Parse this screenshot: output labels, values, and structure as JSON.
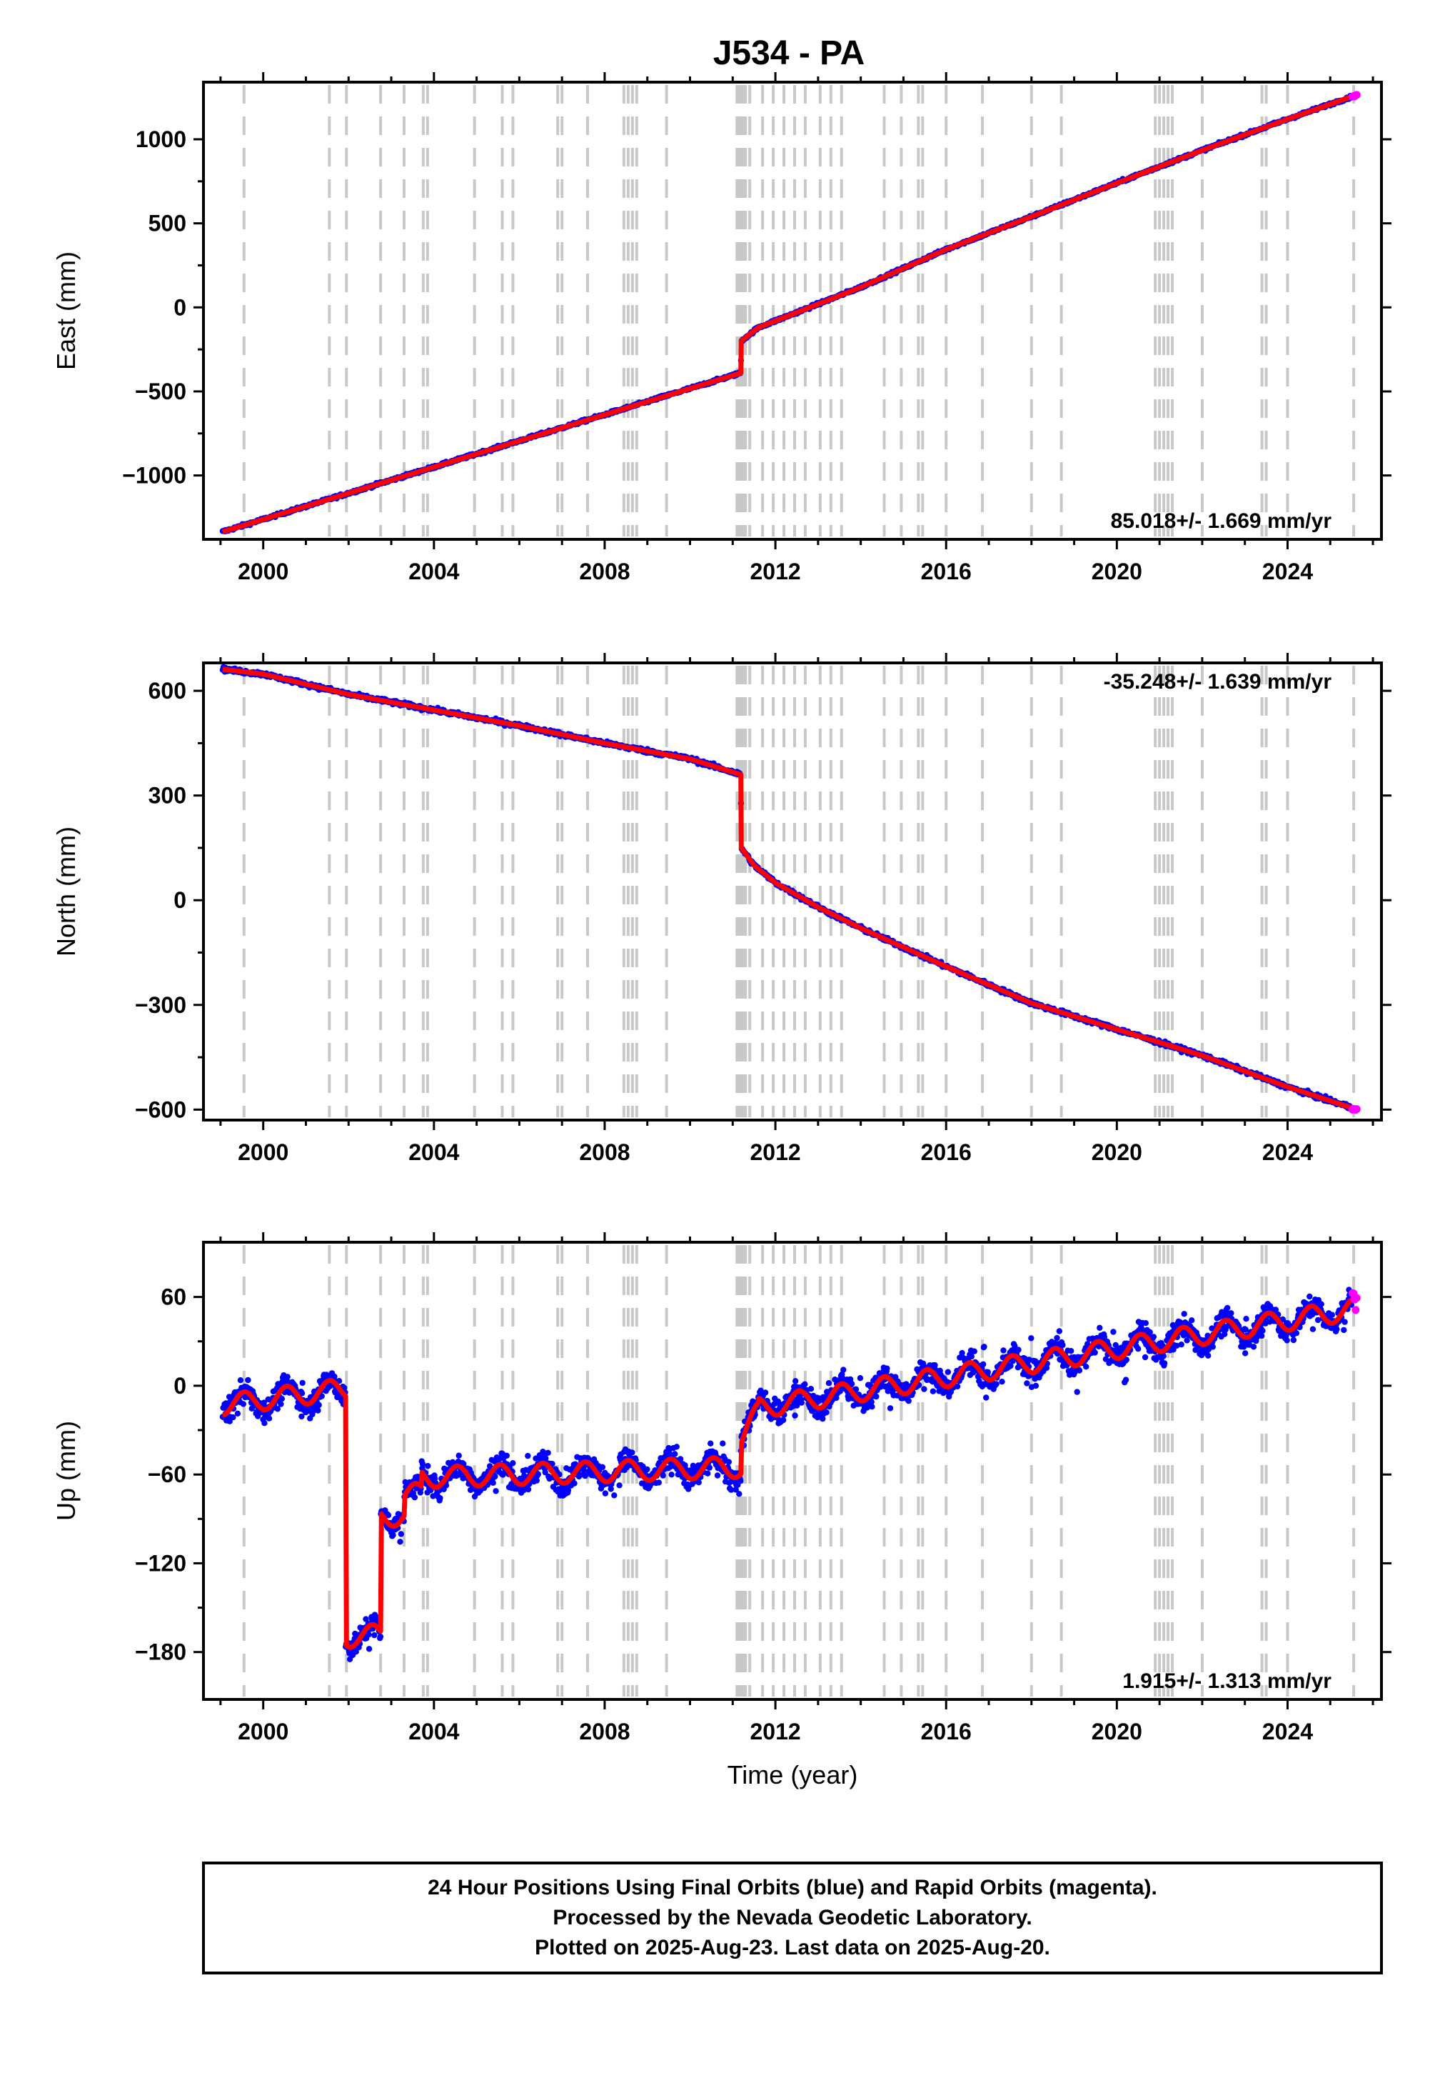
{
  "title": "J534 - PA",
  "footer": {
    "lines": [
      "24 Hour Positions Using Final Orbits (blue) and Rapid Orbits (magenta).",
      "Processed by the Nevada Geodetic Laboratory.",
      "Plotted on 2025-Aug-23. Last data on 2025-Aug-20."
    ]
  },
  "colors": {
    "final_orbits": "#0000ff",
    "rapid_orbits": "#ff00ff",
    "model": "#ff0000",
    "event_lines": "#c8c8c8",
    "frame": "#000000"
  },
  "chart_data": [
    {
      "type": "scatter",
      "panel": "east",
      "title": "J534 - PA",
      "ylabel": "East (mm)",
      "xlabel": "",
      "xlim": [
        1998.6,
        2026.2
      ],
      "ylim": [
        -1380,
        1340
      ],
      "x_ticks": [
        2000,
        2004,
        2008,
        2012,
        2016,
        2020,
        2024
      ],
      "y_ticks": [
        1000,
        500,
        0,
        -500,
        -1000
      ],
      "y_tick_labels": [
        "1000",
        "500",
        "0",
        "−500",
        "−1000"
      ],
      "rate_label": "85.018+/- 1.669 mm/yr",
      "rate_position": "bottom-right",
      "grid": false,
      "model_breakpoints": [
        [
          1999.05,
          -1335
        ],
        [
          2011.19,
          -390
        ],
        [
          2011.2,
          -200
        ],
        [
          2011.6,
          -120
        ],
        [
          2012.5,
          -30
        ],
        [
          2014.0,
          120
        ],
        [
          2016.0,
          345
        ],
        [
          2018.0,
          540
        ],
        [
          2020.0,
          740
        ],
        [
          2022.0,
          935
        ],
        [
          2024.0,
          1120
        ],
        [
          2025.63,
          1265
        ]
      ],
      "series": [
        {
          "name": "Final Orbits",
          "color": "#0000ff",
          "x_range": [
            1999.05,
            2025.5
          ],
          "noise_mm": 8
        },
        {
          "name": "Rapid Orbits",
          "color": "#ff00ff",
          "x_range": [
            2025.52,
            2025.63
          ]
        }
      ]
    },
    {
      "type": "scatter",
      "panel": "north",
      "ylabel": "North (mm)",
      "xlabel": "",
      "xlim": [
        1998.6,
        2026.2
      ],
      "ylim": [
        -630,
        680
      ],
      "x_ticks": [
        2000,
        2004,
        2008,
        2012,
        2016,
        2020,
        2024
      ],
      "y_ticks": [
        600,
        300,
        0,
        -300,
        -600
      ],
      "y_tick_labels": [
        "600",
        "300",
        "0",
        "−300",
        "−600"
      ],
      "rate_label": "-35.248+/- 1.639 mm/yr",
      "rate_position": "top-right",
      "grid": false,
      "model_breakpoints": [
        [
          1999.05,
          662
        ],
        [
          2000.0,
          648
        ],
        [
          2002.0,
          590
        ],
        [
          2004.0,
          545
        ],
        [
          2006.0,
          500
        ],
        [
          2008.0,
          450
        ],
        [
          2010.0,
          405
        ],
        [
          2011.19,
          360
        ],
        [
          2011.2,
          150
        ],
        [
          2011.5,
          100
        ],
        [
          2012.0,
          50
        ],
        [
          2013.0,
          -20
        ],
        [
          2014.0,
          -80
        ],
        [
          2016.0,
          -190
        ],
        [
          2018.0,
          -295
        ],
        [
          2020.0,
          -370
        ],
        [
          2022.0,
          -445
        ],
        [
          2024.0,
          -535
        ],
        [
          2025.63,
          -600
        ]
      ],
      "series": [
        {
          "name": "Final Orbits",
          "color": "#0000ff",
          "x_range": [
            1999.05,
            2025.5
          ],
          "noise_mm": 6
        },
        {
          "name": "Rapid Orbits",
          "color": "#ff00ff",
          "x_range": [
            2025.52,
            2025.63
          ]
        }
      ]
    },
    {
      "type": "scatter",
      "panel": "up",
      "ylabel": "Up (mm)",
      "xlabel": "Time (year)",
      "xlim": [
        1998.6,
        2026.2
      ],
      "ylim": [
        -212,
        97
      ],
      "x_ticks": [
        2000,
        2004,
        2008,
        2012,
        2016,
        2020,
        2024
      ],
      "y_ticks": [
        60,
        0,
        -60,
        -120,
        -180
      ],
      "y_tick_labels": [
        "60",
        "0",
        "−60",
        "−120",
        "−180"
      ],
      "rate_label": "1.915+/- 1.313 mm/yr",
      "rate_position": "bottom-right",
      "grid": false,
      "seasonal_amplitude_mm": 7,
      "model_segments": [
        {
          "from": 1999.05,
          "to": 2001.93,
          "start": -13,
          "end": -2
        },
        {
          "from": 2001.93,
          "to": 2002.75,
          "start": -170,
          "end": -168
        },
        {
          "from": 2002.75,
          "to": 2003.3,
          "start": -88,
          "end": -88
        },
        {
          "from": 2003.3,
          "to": 2003.7,
          "start": -75,
          "end": -72
        },
        {
          "from": 2003.7,
          "to": 2011.19,
          "start": -62,
          "end": -55
        },
        {
          "from": 2011.19,
          "to": 2011.6,
          "start": -35,
          "end": -18
        },
        {
          "from": 2011.6,
          "to": 2025.63,
          "start": -15,
          "end": 52
        }
      ],
      "series": [
        {
          "name": "Final Orbits",
          "color": "#0000ff",
          "x_range": [
            1999.05,
            2025.5
          ],
          "noise_mm": 8
        },
        {
          "name": "Rapid Orbits",
          "color": "#ff00ff",
          "x_range": [
            2025.52,
            2025.63
          ]
        }
      ]
    }
  ],
  "event_lines": [
    1999.55,
    2001.55,
    2001.95,
    2002.75,
    2003.3,
    2003.75,
    2003.85,
    2004.95,
    2005.6,
    2005.85,
    2006.9,
    2007.0,
    2007.6,
    2008.45,
    2008.55,
    2008.65,
    2008.75,
    2009.45,
    2011.1,
    2011.15,
    2011.2,
    2011.25,
    2011.3,
    2011.4,
    2011.7,
    2011.95,
    2012.2,
    2012.45,
    2012.7,
    2013.05,
    2013.3,
    2013.55,
    2014.55,
    2014.95,
    2015.35,
    2015.45,
    2016.0,
    2016.85,
    2018.0,
    2018.7,
    2020.9,
    2021.0,
    2021.1,
    2021.2,
    2021.3,
    2022.0,
    2023.4,
    2023.5,
    2024.0,
    2025.55
  ]
}
